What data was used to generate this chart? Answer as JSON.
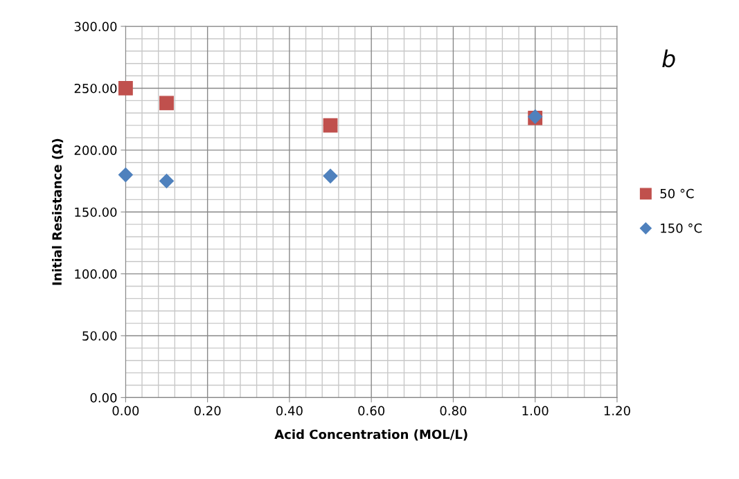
{
  "chart_data": {
    "type": "scatter",
    "xlabel": "Acid Concentration (MOL/L)",
    "ylabel": "Initial Resistance (Ω)",
    "annotations": [
      "b"
    ],
    "series": [
      {
        "name": "50 °C",
        "color": "#c0504d",
        "marker": "square",
        "x": [
          0,
          0.1,
          0.5,
          1.0
        ],
        "values": [
          250,
          238,
          220,
          226
        ]
      },
      {
        "name": "150 °C",
        "color": "#4f81bd",
        "marker": "diamond",
        "x": [
          0,
          0.1,
          0.5,
          1.0
        ],
        "values": [
          180,
          175,
          179,
          227
        ]
      }
    ],
    "xlim": [
      0,
      1.2
    ],
    "xticks": [
      {
        "value": 0,
        "label": "0.00"
      },
      {
        "value": 0.2,
        "label": "0.20"
      },
      {
        "value": 0.4,
        "label": "0.40"
      },
      {
        "value": 0.6,
        "label": "0.60"
      },
      {
        "value": 0.8,
        "label": "0.80"
      },
      {
        "value": 1.0,
        "label": "1.00"
      },
      {
        "value": 1.2,
        "label": "1.20"
      }
    ],
    "ylim": [
      0,
      300
    ],
    "yticks": [
      {
        "value": 0,
        "label": "0.00"
      },
      {
        "value": 50,
        "label": "50.00"
      },
      {
        "value": 100,
        "label": "100.00"
      },
      {
        "value": 150,
        "label": "150.00"
      },
      {
        "value": 200,
        "label": "200.00"
      },
      {
        "value": 250,
        "label": "250.00"
      },
      {
        "value": 300,
        "label": "300.00"
      }
    ],
    "grid": true,
    "legend": "right"
  }
}
